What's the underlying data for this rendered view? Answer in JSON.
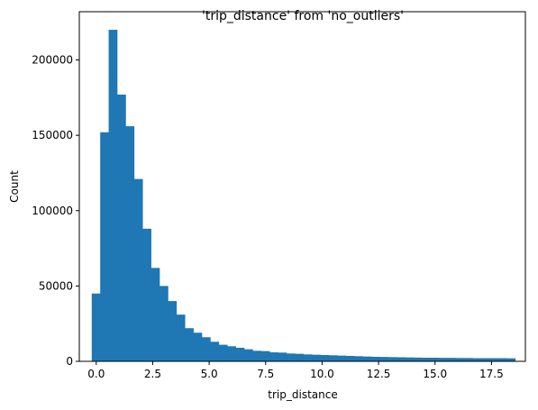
{
  "chart_data": {
    "type": "bar",
    "title": "'trip_distance' from 'no_outliers'",
    "xlabel": "trip_distance",
    "ylabel": "Count",
    "xlim": [
      -0.75,
      19.0
    ],
    "ylim": [
      0,
      232000
    ],
    "xticks": [
      0,
      2.5,
      5,
      7.5,
      10,
      12.5,
      15,
      17.5
    ],
    "xtick_labels": [
      "0.0",
      "2.5",
      "5.0",
      "7.5",
      "10.0",
      "12.5",
      "15.0",
      "17.5"
    ],
    "yticks": [
      0,
      50000,
      100000,
      150000,
      200000
    ],
    "ytick_labels": [
      "0",
      "50000",
      "100000",
      "150000",
      "200000"
    ],
    "bin_start": -0.2,
    "bin_end": 18.55,
    "color": "#1f77b4",
    "values": [
      45000,
      152000,
      220000,
      177000,
      156000,
      121000,
      88000,
      62000,
      50000,
      40000,
      31000,
      22000,
      19000,
      16000,
      13000,
      11000,
      10000,
      9000,
      8000,
      7000,
      6800,
      6000,
      5800,
      5200,
      5000,
      4600,
      4400,
      4200,
      4000,
      3800,
      3600,
      3400,
      3200,
      3000,
      2900,
      2800,
      2700,
      2600,
      2500,
      2400,
      2400,
      2300,
      2300,
      2200,
      2200,
      2100,
      2100,
      2100,
      2100,
      2000
    ]
  }
}
